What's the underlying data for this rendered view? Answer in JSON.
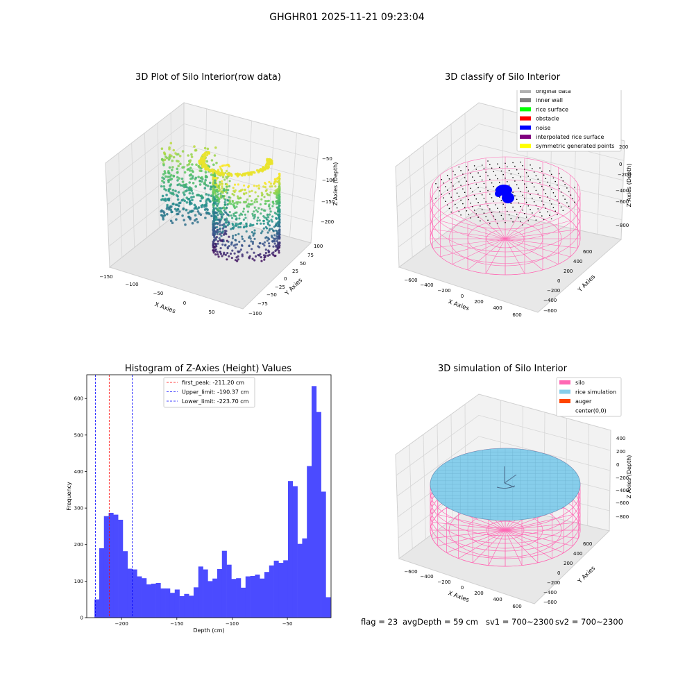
{
  "suptitle": "GHGHR01 2025-11-21 09:23:04",
  "status": {
    "flag": "flag = 23",
    "avg_depth": "avgDepth = 59 cm",
    "sv1": "sv1 = 700~2300",
    "sv2": "sv2 = 700~2300"
  },
  "colors": {
    "grid": "#cccccc",
    "pane": "#f2f2f2",
    "hist_bar": "#4b4bff",
    "silo": "#ff69b4",
    "rice_sim": "#87ceeb",
    "auger": "#ff4500",
    "noise": "#0000ff"
  },
  "chart_data": [
    {
      "type": "scatter",
      "title": "3D Plot of Silo Interior(row data)",
      "xlabel": "X Axies",
      "ylabel": "Y Axies",
      "zlabel": "Z Axies (Depth)",
      "x_ticks": [
        "−150",
        "−100",
        "−50",
        "0",
        "50"
      ],
      "y_ticks": [
        "100",
        "75",
        "50",
        "25",
        "0",
        "−25",
        "−50",
        "−75",
        "−100"
      ],
      "z_ticks": [
        "−50",
        "−100",
        "−150",
        "−200"
      ],
      "colormap": "viridis"
    },
    {
      "type": "scatter",
      "title": "3D classify of Silo Interior",
      "xlabel": "X Axies",
      "ylabel": "Y Axies",
      "zlabel": "Z Axies (Depth)",
      "x_ticks": [
        "−600",
        "−400",
        "−200",
        "0",
        "200",
        "400",
        "600"
      ],
      "y_ticks": [
        "600",
        "400",
        "200",
        "0",
        "−200",
        "−400",
        "−600"
      ],
      "z_ticks": [
        "200",
        "0",
        "−200",
        "−400",
        "−600",
        "−800"
      ],
      "legend": [
        {
          "label": "original data",
          "color": "#b0b0b0"
        },
        {
          "label": "inner wall",
          "color": "#808080"
        },
        {
          "label": "rice surface",
          "color": "#00ff00"
        },
        {
          "label": "obstacle",
          "color": "#ff0000"
        },
        {
          "label": "noise",
          "color": "#0000ff"
        },
        {
          "label": "interpolated rice surface",
          "color": "#800080"
        },
        {
          "label": "symmetric generated points",
          "color": "#ffff00"
        }
      ]
    },
    {
      "type": "bar",
      "title": "Histogram of Z-Axies (Height) Values",
      "xlabel": "Depth (cm)",
      "ylabel": "Frequency",
      "xlim": [
        -231.5,
        -10.5
      ],
      "ylim": [
        0,
        665
      ],
      "x_ticks": [
        -200,
        -150,
        -100,
        -50
      ],
      "y_ticks": [
        0,
        100,
        200,
        300,
        400,
        500,
        600
      ],
      "bin_start": -224.5,
      "bin_width": 4.27,
      "values": [
        50,
        190,
        278,
        287,
        282,
        268,
        182,
        134,
        132,
        113,
        108,
        91,
        93,
        95,
        80,
        80,
        68,
        77,
        59,
        65,
        60,
        83,
        140,
        132,
        100,
        107,
        133,
        183,
        145,
        106,
        108,
        82,
        113,
        114,
        118,
        107,
        125,
        143,
        156,
        150,
        157,
        374,
        360,
        202,
        217,
        415,
        634,
        563,
        345,
        56
      ],
      "lines": [
        {
          "label": "first_peak: -211.20 cm",
          "x": -211.2,
          "color": "#ff0000"
        },
        {
          "label": "Upper_limit: -190.37 cm",
          "x": -190.37,
          "color": "#0000ff"
        },
        {
          "label": "Lower_limit: -223.70 cm",
          "x": -223.7,
          "color": "#0000ff"
        }
      ],
      "legend_position": "upper center"
    },
    {
      "type": "scatter",
      "title": "3D simulation of Silo Interior",
      "xlabel": "X Axies",
      "ylabel": "Y Axies",
      "zlabel": "Z Axies (Depth)",
      "x_ticks": [
        "−600",
        "−400",
        "−200",
        "0",
        "200",
        "400",
        "600"
      ],
      "y_ticks": [
        "600",
        "400",
        "200",
        "0",
        "−200",
        "−400",
        "−600"
      ],
      "z_ticks": [
        "400",
        "200",
        "0",
        "−200",
        "−400",
        "−600",
        "−800"
      ],
      "legend": [
        {
          "label": "silo",
          "color": "#ff69b4"
        },
        {
          "label": "rice simulation",
          "color": "#87ceeb"
        },
        {
          "label": "auger",
          "color": "#ff4500"
        },
        {
          "label": "center(0,0)",
          "color": ""
        }
      ]
    }
  ]
}
